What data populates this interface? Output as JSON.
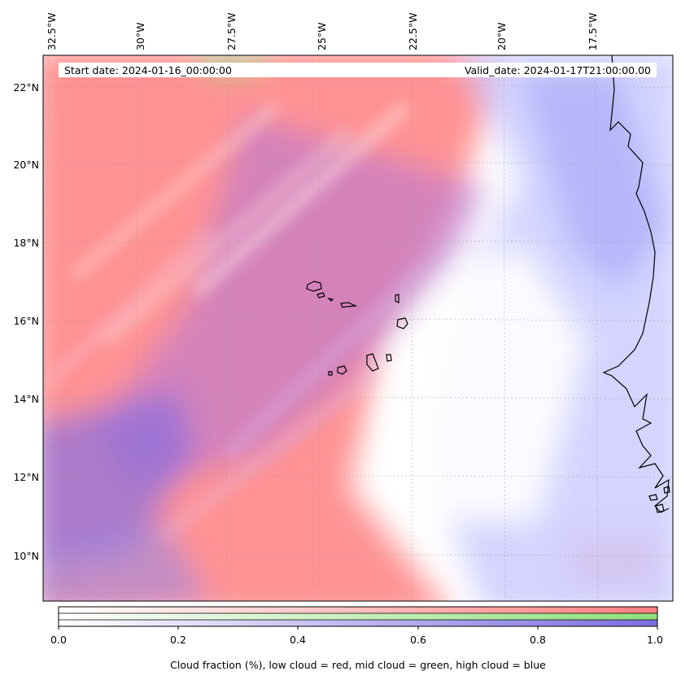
{
  "map": {
    "start_label": "Start date: 2024-01-16_00:00:00",
    "valid_label": "Valid_date: 2024-01-17T21:00:00.00",
    "longitudes": [
      "32.5°W",
      "30°W",
      "27.5°W",
      "25°W",
      "22.5°W",
      "20°W",
      "17.5°W"
    ],
    "latitudes": [
      "22°N",
      "20°N",
      "18°N",
      "16°N",
      "14°N",
      "12°N",
      "10°N"
    ],
    "colors": {
      "low_cloud": "#ff7f7f",
      "mid_cloud": "#8fe07a",
      "high_cloud": "#7b6fe0",
      "coastline": "#000000",
      "gridline": "#9a9a9a"
    }
  },
  "colorbar": {
    "ticks": [
      "0.0",
      "0.2",
      "0.4",
      "0.6",
      "0.8",
      "1.0"
    ],
    "title": "Cloud fraction (%), low cloud = red, mid cloud = green, high cloud = blue"
  }
}
